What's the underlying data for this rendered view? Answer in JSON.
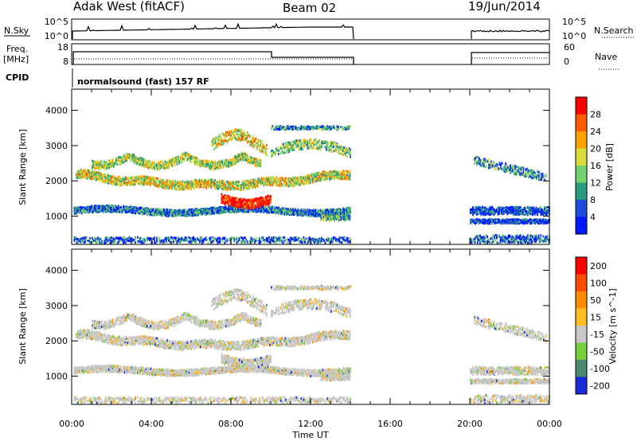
{
  "header": {
    "station": "Adak West (fitACF)",
    "beam": "Beam 02",
    "date": "19/Jun/2014"
  },
  "nsky_panel": {
    "left_label": "N.Sky",
    "left_ticks": [
      "10^5",
      "10^0"
    ],
    "right_ticks": [
      "10^5",
      "10^0"
    ],
    "right_label": "N.Search"
  },
  "freq_panel": {
    "left_label_1": "Freq.",
    "left_label_2": "[MHz]",
    "left_ticks": [
      "18",
      "8"
    ],
    "right_ticks": [
      "60",
      "0"
    ],
    "right_label": "Nave"
  },
  "cpid_panel": {
    "label": "CPID",
    "program": "normalsound (fast) 157 RF"
  },
  "chart_data": [
    {
      "type": "heatmap",
      "name": "power",
      "ylabel": "Slant Range [km]",
      "xlabel": "",
      "ylim": [
        200,
        4600
      ],
      "yticks": [
        "1000",
        "2000",
        "3000",
        "4000"
      ],
      "colorbar": {
        "label": "Power [dB]",
        "ticks": [
          "4",
          "8",
          "12",
          "16",
          "20",
          "24",
          "28"
        ],
        "colors": [
          "#0018ff",
          "#1c4cd9",
          "#2a9b7e",
          "#72d06e",
          "#d7dc3a",
          "#ffa200",
          "#ff5a00",
          "#ff0000"
        ]
      }
    },
    {
      "type": "heatmap",
      "name": "velocity",
      "ylabel": "Slant Range [km]",
      "xlabel": "Time UT",
      "ylim": [
        200,
        4600
      ],
      "yticks": [
        "1000",
        "2000",
        "3000",
        "4000"
      ],
      "xticks": [
        "00:00",
        "04:00",
        "08:00",
        "12:00",
        "16:00",
        "20:00",
        "00:00"
      ],
      "colorbar": {
        "label": "Velocity [m s^-1]",
        "ticks": [
          "200",
          "100",
          "50",
          "15",
          "-15",
          "-50",
          "-100",
          "-200"
        ],
        "colors": [
          "#1a2bd9",
          "#4a8a70",
          "#78cf3c",
          "#c8c8c8",
          "#ffbf20",
          "#ff8c00",
          "#ff4a00",
          "#ff0000"
        ]
      }
    }
  ],
  "time_axis": {
    "labels": [
      "00:00",
      "04:00",
      "08:00",
      "12:00",
      "16:00",
      "20:00",
      "00:00"
    ],
    "title": "Time UT"
  }
}
